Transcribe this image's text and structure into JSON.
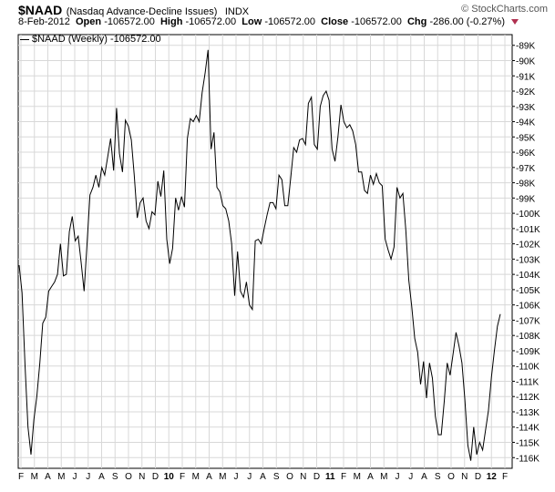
{
  "header": {
    "symbol": "$NAAD",
    "description": "(Nasdaq Advance-Decline Issues)",
    "exchange": "INDX",
    "brand": "© StockCharts.com",
    "date": "8-Feb-2012",
    "open_label": "Open",
    "open_value": "-106572.00",
    "high_label": "High",
    "high_value": "-106572.00",
    "low_label": "Low",
    "low_value": "-106572.00",
    "close_label": "Close",
    "close_value": "-106572.00",
    "chg_label": "Chg",
    "chg_value": "-286.00 (-0.27%)",
    "chg_arrow_color": "#b03050"
  },
  "legend": {
    "text": "$NAAD (Weekly) -106572.00"
  },
  "chart_data": {
    "type": "line",
    "series": [
      {
        "name": "$NAAD (Weekly)",
        "values": [
          -103400,
          -105200,
          -110000,
          -114000,
          -115800,
          -113500,
          -112000,
          -109800,
          -107200,
          -106800,
          -105100,
          -104800,
          -104500,
          -104000,
          -102000,
          -104100,
          -104000,
          -101200,
          -100200,
          -101800,
          -101500,
          -103200,
          -105100,
          -102000,
          -98800,
          -98300,
          -97500,
          -98300,
          -97000,
          -97500,
          -96300,
          -95100,
          -97200,
          -93100,
          -96100,
          -97300,
          -93900,
          -94300,
          -95200,
          -97500,
          -100300,
          -99300,
          -99000,
          -100500,
          -101000,
          -99900,
          -100100,
          -97900,
          -98900,
          -97200,
          -101700,
          -103300,
          -102300,
          -99000,
          -99800,
          -98900,
          -99600,
          -95100,
          -93800,
          -94000,
          -93600,
          -94000,
          -92100,
          -90800,
          -89300,
          -95800,
          -94700,
          -98300,
          -98600,
          -99500,
          -99700,
          -100500,
          -102000,
          -105400,
          -102500,
          -105100,
          -105500,
          -104500,
          -106000,
          -106300,
          -101800,
          -101700,
          -102000,
          -101000,
          -100100,
          -99300,
          -99300,
          -99700,
          -97500,
          -97800,
          -99500,
          -99500,
          -97700,
          -95700,
          -96000,
          -95200,
          -95100,
          -95500,
          -92800,
          -92400,
          -95500,
          -95800,
          -93000,
          -92300,
          -92000,
          -92600,
          -95800,
          -96600,
          -95000,
          -92900,
          -94000,
          -94400,
          -94200,
          -94600,
          -95500,
          -97300,
          -97300,
          -98500,
          -98700,
          -97500,
          -98100,
          -97400,
          -98000,
          -98200,
          -101700,
          -102400,
          -103000,
          -102200,
          -98300,
          -99000,
          -98700,
          -101100,
          -104400,
          -106100,
          -108200,
          -109100,
          -111200,
          -109700,
          -112100,
          -109800,
          -110800,
          -113300,
          -114500,
          -114500,
          -112300,
          -109800,
          -110600,
          -109200,
          -107800,
          -108700,
          -109800,
          -112200,
          -115200,
          -116200,
          -114000,
          -115800,
          -115000,
          -115500,
          -114200,
          -112900,
          -110700,
          -109000,
          -107400,
          -106600
        ]
      }
    ],
    "x_labels": [
      "F",
      "M",
      "A",
      "M",
      "J",
      "J",
      "A",
      "S",
      "O",
      "N",
      "D",
      "10",
      "F",
      "M",
      "A",
      "M",
      "J",
      "J",
      "A",
      "S",
      "O",
      "N",
      "D",
      "11",
      "F",
      "M",
      "A",
      "M",
      "J",
      "J",
      "A",
      "S",
      "O",
      "N",
      "D",
      "12",
      "F"
    ],
    "x_bold_labels": [
      "10",
      "11",
      "12"
    ],
    "y_ticks": [
      -89000,
      -90000,
      -91000,
      -92000,
      -93000,
      -94000,
      -95000,
      -96000,
      -97000,
      -98000,
      -99000,
      -100000,
      -101000,
      -102000,
      -103000,
      -104000,
      -105000,
      -106000,
      -107000,
      -108000,
      -109000,
      -110000,
      -111000,
      -112000,
      -113000,
      -114000,
      -115000,
      -116000
    ],
    "y_tick_labels": [
      "-89K",
      "-90K",
      "-91K",
      "-92K",
      "-93K",
      "-94K",
      "-95K",
      "-96K",
      "-97K",
      "-98K",
      "-99K",
      "-100K",
      "-101K",
      "-102K",
      "-103K",
      "-104K",
      "-105K",
      "-106K",
      "-107K",
      "-108K",
      "-109K",
      "-110K",
      "-111K",
      "-112K",
      "-113K",
      "-114K",
      "-115K",
      "-116K"
    ],
    "ylim": [
      -116700,
      -88300
    ],
    "grid": true,
    "legend_position": "top-left",
    "line_color": "#000000",
    "grid_color": "#d8d8d8"
  }
}
